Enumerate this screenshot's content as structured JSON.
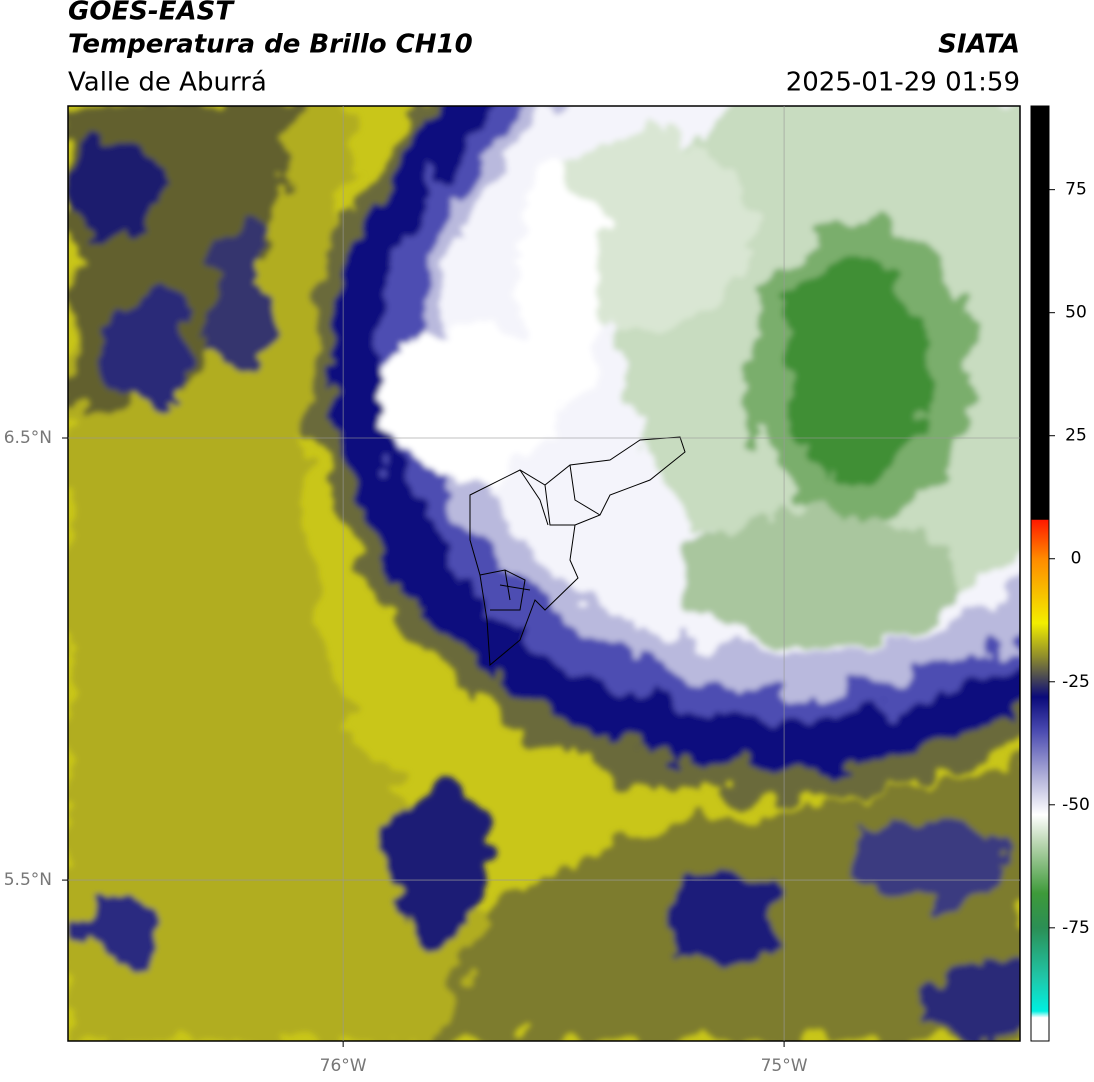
{
  "header": {
    "satellite": "GOES-EAST",
    "title": "Temperatura de Brillo CH10",
    "region": "Valle de Aburrá",
    "source": "SIATA",
    "datetime": "2025-01-29 01:59"
  },
  "map": {
    "lon_range": [
      -76.624,
      -74.465
    ],
    "lat_range": [
      5.136,
      7.251
    ],
    "lon_ticks": [
      {
        "value": -76,
        "label": "76°W"
      },
      {
        "value": -75,
        "label": "75°W"
      }
    ],
    "lat_ticks": [
      {
        "value": 6.5,
        "label": "6.5°N"
      },
      {
        "value": 5.5,
        "label": "5.5°N"
      }
    ],
    "grid": true
  },
  "colorbar": {
    "range": [
      -98,
      92
    ],
    "ticks": [
      75,
      50,
      25,
      0,
      -25,
      -50,
      -75
    ]
  }
}
